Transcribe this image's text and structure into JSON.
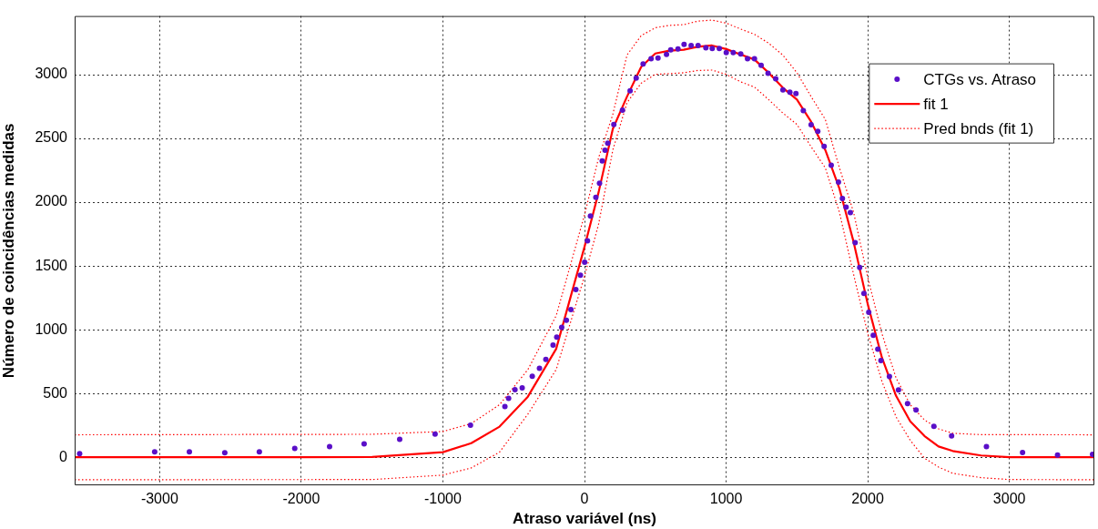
{
  "chart_data": {
    "type": "scatter",
    "xlabel": "Atraso variável (ns)",
    "ylabel": "Número de coincidências medidas",
    "xlim": [
      -3600,
      3600
    ],
    "ylim": [
      -220,
      3460
    ],
    "xticks": [
      -3000,
      -2000,
      -1000,
      0,
      1000,
      2000,
      3000
    ],
    "yticks": [
      0,
      500,
      1000,
      1500,
      2000,
      2500,
      3000
    ],
    "grid": true,
    "legend": "top right",
    "series": [
      {
        "name": "CTGs vs. Atraso",
        "type": "scatter",
        "color": "#5a0fc8",
        "marker": "circle",
        "x": [
          -3565,
          -3035,
          -2790,
          -2540,
          -2296,
          -2046,
          -1800,
          -1556,
          -1305,
          -1055,
          -805,
          -562,
          -536,
          -491,
          -440,
          -369,
          -318,
          -273,
          -222,
          -196,
          -161,
          -128,
          -96,
          -61,
          -29,
          1,
          21,
          42,
          80,
          106,
          125,
          145,
          164,
          207,
          268,
          322,
          365,
          414,
          470,
          519,
          579,
          609,
          660,
          703,
          753,
          802,
          857,
          902,
          952,
          1001,
          1050,
          1103,
          1151,
          1200,
          1247,
          1296,
          1350,
          1401,
          1450,
          1493,
          1545,
          1600,
          1647,
          1692,
          1742,
          1793,
          1821,
          1847,
          1877,
          1911,
          1943,
          1973,
          2007,
          2039,
          2071,
          2093,
          2153,
          2217,
          2281,
          2341,
          2467,
          2592,
          2838,
          3093,
          3340,
          3587
        ],
        "values": [
          28,
          42,
          42,
          35,
          42,
          70,
          84,
          105,
          140,
          181,
          251,
          398,
          461,
          530,
          544,
          635,
          698,
          768,
          879,
          942,
          1019,
          1075,
          1158,
          1315,
          1427,
          1530,
          1698,
          1891,
          2038,
          2149,
          2324,
          2407,
          2463,
          2610,
          2721,
          2873,
          2973,
          3084,
          3126,
          3131,
          3159,
          3194,
          3201,
          3238,
          3229,
          3229,
          3210,
          3205,
          3205,
          3173,
          3173,
          3163,
          3126,
          3126,
          3073,
          3010,
          2968,
          2880,
          2863,
          2852,
          2719,
          2608,
          2556,
          2438,
          2289,
          2158,
          2029,
          1961,
          1919,
          1682,
          1489,
          1284,
          1137,
          956,
          847,
          758,
          633,
          528,
          421,
          370,
          242,
          167,
          84,
          37,
          17,
          22
        ]
      },
      {
        "name": "fit 1",
        "type": "line",
        "color": "#ff0000",
        "line_style": "solid",
        "marker": "none",
        "x": [
          -3600,
          -2000,
          -1500,
          -1000,
          -800,
          -600,
          -400,
          -200,
          0,
          100,
          200,
          300,
          400,
          500,
          600,
          700,
          800,
          900,
          1000,
          1100,
          1200,
          1300,
          1400,
          1500,
          1600,
          1700,
          1800,
          1900,
          2000,
          2100,
          2200,
          2300,
          2400,
          2500,
          2600,
          2800,
          3000,
          3600
        ],
        "values": [
          0,
          0,
          2,
          40,
          110,
          240,
          475,
          850,
          1650,
          2080,
          2575,
          2828,
          3061,
          3166,
          3189,
          3196,
          3219,
          3229,
          3201,
          3159,
          3119,
          3015,
          2898,
          2805,
          2631,
          2410,
          2107,
          1689,
          1200,
          782,
          481,
          281,
          167,
          84,
          49,
          14,
          0,
          0
        ]
      },
      {
        "name": "Pred bnds (fit 1)",
        "type": "line",
        "color": "#ff0000",
        "line_style": "dotted",
        "marker": "none",
        "x": [
          -3600,
          -1500,
          -1000,
          -800,
          -600,
          -400,
          -200,
          0,
          100,
          200,
          300,
          400,
          500,
          600,
          700,
          800,
          900,
          1000,
          1100,
          1200,
          1300,
          1400,
          1500,
          1600,
          1700,
          1800,
          1900,
          2000,
          2100,
          2200,
          2300,
          2400,
          2500,
          2600,
          2800,
          3600
        ],
        "values": [
          176,
          180,
          202,
          264,
          412,
          687,
          1110,
          1900,
          2350,
          2689,
          3154,
          3306,
          3368,
          3387,
          3392,
          3420,
          3428,
          3405,
          3359,
          3317,
          3247,
          3154,
          3015,
          2828,
          2650,
          2270,
          1921,
          1410,
          970,
          621,
          412,
          293,
          223,
          188,
          177,
          176
        ]
      },
      {
        "type": "line",
        "color": "#ff0000",
        "line_style": "dotted",
        "marker": "none",
        "x": [
          -3600,
          -1500,
          -1000,
          -800,
          -600,
          -400,
          -200,
          0,
          100,
          200,
          300,
          400,
          500,
          600,
          700,
          800,
          900,
          1000,
          1100,
          1200,
          1300,
          1400,
          1500,
          1600,
          1700,
          1800,
          1900,
          2000,
          2100,
          2200,
          2300,
          2400,
          2500,
          2600,
          2800,
          3000,
          3600
        ],
        "values": [
          -176,
          -175,
          -140,
          -84,
          40,
          338,
          687,
          1420,
          1830,
          2410,
          2780,
          2933,
          3003,
          3008,
          3015,
          3033,
          3036,
          3003,
          2945,
          2903,
          2805,
          2700,
          2610,
          2435,
          2270,
          1921,
          1433,
          970,
          595,
          316,
          133,
          -7,
          -77,
          -126,
          -160,
          -175,
          -176
        ]
      }
    ]
  }
}
